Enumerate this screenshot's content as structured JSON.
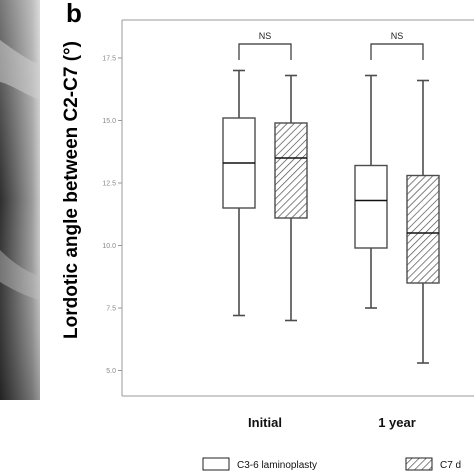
{
  "figure": {
    "panel_letter": "b"
  },
  "chart_data": {
    "type": "box",
    "ylabel": "Lordotic angle between C2-C7 (°)",
    "xlabel": "",
    "ylim": [
      4.5,
      18.3
    ],
    "yticks": [
      "5.0",
      "7.5",
      "10.0",
      "12.5",
      "15.0",
      "17.5"
    ],
    "categories": [
      "Initial",
      "1 year"
    ],
    "series": [
      {
        "name": "C3-6 laminoplasty",
        "fill": "plain",
        "boxes": [
          {
            "min": 7.2,
            "q1": 11.5,
            "median": 13.3,
            "q3": 15.1,
            "max": 17.0
          },
          {
            "min": 7.5,
            "q1": 9.9,
            "median": 11.8,
            "q3": 13.2,
            "max": 16.8
          }
        ]
      },
      {
        "name": "C7 d",
        "fill": "hatched",
        "boxes": [
          {
            "min": 7.0,
            "q1": 11.1,
            "median": 13.5,
            "q3": 14.9,
            "max": 16.8
          },
          {
            "min": 5.3,
            "q1": 8.5,
            "median": 10.5,
            "q3": 12.8,
            "max": 16.6
          }
        ]
      }
    ],
    "significance": [
      "NS",
      "NS"
    ],
    "legend_position": "bottom"
  },
  "colors": {
    "box_stroke": "#4d4d4d",
    "frame": "#9a9a9a",
    "axis_text": "#888888",
    "xray_bright": "#d8d8d8",
    "xray_dark": "#2a2a2a"
  }
}
